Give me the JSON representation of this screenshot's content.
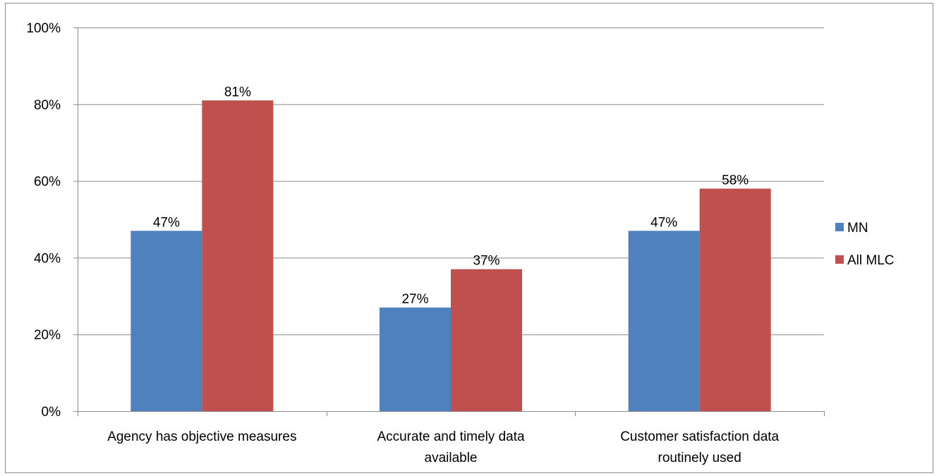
{
  "chart_data": {
    "type": "bar",
    "categories": [
      [
        "Agency has objective measures"
      ],
      [
        "Accurate and timely data",
        "available"
      ],
      [
        "Customer satisfaction data",
        "routinely used"
      ]
    ],
    "series": [
      {
        "name": "MN",
        "values": [
          47,
          27,
          47
        ],
        "labels": [
          "47%",
          "27%",
          "47%"
        ],
        "color": "#4f81bd"
      },
      {
        "name": "All MLC",
        "values": [
          81,
          37,
          58
        ],
        "labels": [
          "81%",
          "37%",
          "58%"
        ],
        "color": "#c0504d"
      }
    ],
    "yticks": [
      0,
      20,
      40,
      60,
      80,
      100
    ],
    "ytick_labels": [
      "0%",
      "20%",
      "40%",
      "60%",
      "80%",
      "100%"
    ],
    "ylim": [
      0,
      100
    ],
    "grid": true,
    "legend": "right",
    "title": "",
    "xlabel": "",
    "ylabel": ""
  }
}
